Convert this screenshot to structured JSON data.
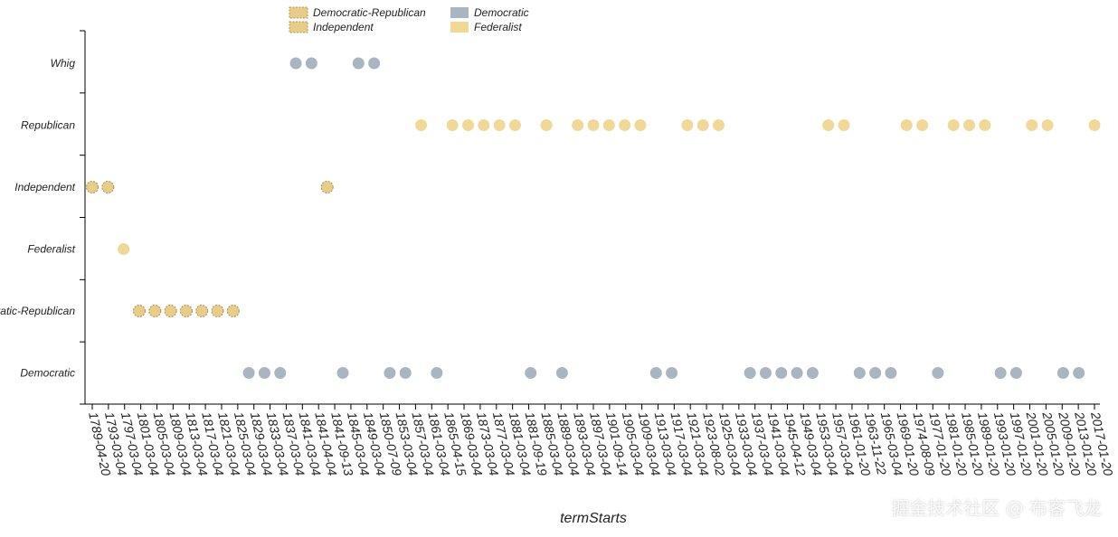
{
  "chart_data": {
    "type": "scatter",
    "xlabel": "termStarts",
    "ylabel": "",
    "legend_position": "top-center",
    "legend": [
      {
        "name": "Democratic-Republican",
        "color": "#e8cd8a",
        "stroke": "#b89a4e",
        "dashed": true
      },
      {
        "name": "Democratic",
        "color": "#aab5c2",
        "stroke": "#aab5c2",
        "dashed": false
      },
      {
        "name": "Independent",
        "color": "#e8cd8a",
        "stroke": "#b89a4e",
        "dashed": true
      },
      {
        "name": "Federalist",
        "color": "#f0d896",
        "stroke": "#f0d896",
        "dashed": false
      }
    ],
    "categories_y": [
      "Whig",
      "Republican",
      "Independent",
      "Federalist",
      "Democratic-Republican",
      "Democratic"
    ],
    "categories_x": [
      "1789-04-20",
      "1793-03-04",
      "1797-03-04",
      "1801-03-04",
      "1805-03-04",
      "1809-03-04",
      "1813-03-04",
      "1817-03-04",
      "1821-03-04",
      "1825-03-04",
      "1829-03-04",
      "1833-03-04",
      "1837-03-04",
      "1841-03-04",
      "1841-04-04",
      "1841-09-13",
      "1845-03-04",
      "1849-03-04",
      "1850-07-09",
      "1853-03-04",
      "1857-03-04",
      "1861-03-04",
      "1865-04-15",
      "1869-03-04",
      "1873-03-04",
      "1877-03-04",
      "1881-03-04",
      "1881-09-19",
      "1885-03-04",
      "1889-03-04",
      "1893-03-04",
      "1897-03-04",
      "1901-09-14",
      "1901-03-04",
      "1905-03-04",
      "1909-03-04",
      "1913-03-04",
      "1917-03-04",
      "1921-03-04",
      "1923-08-02",
      "1925-03-04",
      "1929-03-04",
      "1933-03-04",
      "1937-03-04",
      "1941-03-04",
      "1945-04-12",
      "1949-03-04",
      "1953-03-04",
      "1957-03-04",
      "1961-01-20",
      "1963-11-22",
      "1965-03-04",
      "1969-01-20",
      "1974-08-09",
      "1977-01-20",
      "1981-01-20",
      "1985-01-20",
      "1989-01-20",
      "1993-01-20",
      "1997-01-20",
      "2001-01-20",
      "2005-01-20",
      "2009-01-20",
      "2013-01-20",
      "2017-01-20"
    ],
    "tick_labels_x": [
      "1789-04-20",
      "1793-03-04",
      "1797-03-04",
      "1801-03-04",
      "1805-03-04",
      "1809-03-04",
      "1813-03-04",
      "1817-03-04",
      "1821-03-04",
      "1825-03-04",
      "1829-03-04",
      "1833-03-04",
      "1837-03-04",
      "1841-03-04",
      "1841-04-04",
      "1841-09-13",
      "1845-03-04",
      "1849-03-04",
      "1850-07-09",
      "1853-03-04",
      "1857-03-04",
      "1861-03-04",
      "1865-04-15",
      "1869-03-04",
      "1873-03-04",
      "1877-03-04",
      "1881-03-04",
      "1881-09-19",
      "1885-03-04",
      "1889-03-04",
      "1893-03-04",
      "1897-03-04",
      "1901-09-14",
      "1905-03-04",
      "1909-03-04",
      "1913-03-04",
      "1917-03-04",
      "1921-03-04",
      "1923-08-02",
      "1925-03-04",
      "1933-03-04",
      "1937-03-04",
      "1941-03-04",
      "1945-04-12",
      "1949-03-04",
      "1953-03-04",
      "1957-03-04",
      "1961-01-20",
      "1963-11-22",
      "1965-03-04",
      "1969-01-20",
      "1974-08-09",
      "1977-01-20",
      "1981-01-20",
      "1985-01-20",
      "1989-01-20",
      "1993-01-20",
      "1997-01-20",
      "2001-01-20",
      "2005-01-20",
      "2009-01-20",
      "2013-01-20",
      "2017-01-20"
    ],
    "points": [
      {
        "x": "1789-04-20",
        "y": "Independent"
      },
      {
        "x": "1793-03-04",
        "y": "Independent"
      },
      {
        "x": "1797-03-04",
        "y": "Federalist"
      },
      {
        "x": "1801-03-04",
        "y": "Democratic-Republican"
      },
      {
        "x": "1805-03-04",
        "y": "Democratic-Republican"
      },
      {
        "x": "1809-03-04",
        "y": "Democratic-Republican"
      },
      {
        "x": "1813-03-04",
        "y": "Democratic-Republican"
      },
      {
        "x": "1817-03-04",
        "y": "Democratic-Republican"
      },
      {
        "x": "1821-03-04",
        "y": "Democratic-Republican"
      },
      {
        "x": "1825-03-04",
        "y": "Democratic-Republican"
      },
      {
        "x": "1829-03-04",
        "y": "Democratic"
      },
      {
        "x": "1833-03-04",
        "y": "Democratic"
      },
      {
        "x": "1837-03-04",
        "y": "Democratic"
      },
      {
        "x": "1841-03-04",
        "y": "Whig"
      },
      {
        "x": "1841-04-04",
        "y": "Whig"
      },
      {
        "x": "1841-09-13",
        "y": "Independent"
      },
      {
        "x": "1845-03-04",
        "y": "Democratic"
      },
      {
        "x": "1849-03-04",
        "y": "Whig"
      },
      {
        "x": "1850-07-09",
        "y": "Whig"
      },
      {
        "x": "1853-03-04",
        "y": "Democratic"
      },
      {
        "x": "1857-03-04",
        "y": "Democratic"
      },
      {
        "x": "1861-03-04",
        "y": "Republican"
      },
      {
        "x": "1865-04-15",
        "y": "Democratic"
      },
      {
        "x": "1869-03-04",
        "y": "Republican"
      },
      {
        "x": "1873-03-04",
        "y": "Republican"
      },
      {
        "x": "1877-03-04",
        "y": "Republican"
      },
      {
        "x": "1881-03-04",
        "y": "Republican"
      },
      {
        "x": "1881-09-19",
        "y": "Republican"
      },
      {
        "x": "1885-03-04",
        "y": "Democratic"
      },
      {
        "x": "1889-03-04",
        "y": "Republican"
      },
      {
        "x": "1893-03-04",
        "y": "Democratic"
      },
      {
        "x": "1897-03-04",
        "y": "Republican"
      },
      {
        "x": "1901-09-14",
        "y": "Republican"
      },
      {
        "x": "1901-03-04",
        "y": "Republican"
      },
      {
        "x": "1905-03-04",
        "y": "Republican"
      },
      {
        "x": "1909-03-04",
        "y": "Republican"
      },
      {
        "x": "1913-03-04",
        "y": "Democratic"
      },
      {
        "x": "1917-03-04",
        "y": "Democratic"
      },
      {
        "x": "1921-03-04",
        "y": "Republican"
      },
      {
        "x": "1923-08-02",
        "y": "Republican"
      },
      {
        "x": "1925-03-04",
        "y": "Republican"
      },
      {
        "x": "1933-03-04",
        "y": "Democratic"
      },
      {
        "x": "1937-03-04",
        "y": "Democratic"
      },
      {
        "x": "1941-03-04",
        "y": "Democratic"
      },
      {
        "x": "1945-04-12",
        "y": "Democratic"
      },
      {
        "x": "1949-03-04",
        "y": "Democratic"
      },
      {
        "x": "1953-03-04",
        "y": "Republican"
      },
      {
        "x": "1957-03-04",
        "y": "Republican"
      },
      {
        "x": "1961-01-20",
        "y": "Democratic"
      },
      {
        "x": "1963-11-22",
        "y": "Democratic"
      },
      {
        "x": "1965-03-04",
        "y": "Democratic"
      },
      {
        "x": "1969-01-20",
        "y": "Republican"
      },
      {
        "x": "1974-08-09",
        "y": "Republican"
      },
      {
        "x": "1977-01-20",
        "y": "Democratic"
      },
      {
        "x": "1981-01-20",
        "y": "Republican"
      },
      {
        "x": "1985-01-20",
        "y": "Republican"
      },
      {
        "x": "1989-01-20",
        "y": "Republican"
      },
      {
        "x": "1993-01-20",
        "y": "Democratic"
      },
      {
        "x": "1997-01-20",
        "y": "Democratic"
      },
      {
        "x": "2001-01-20",
        "y": "Republican"
      },
      {
        "x": "2005-01-20",
        "y": "Republican"
      },
      {
        "x": "2009-01-20",
        "y": "Democratic"
      },
      {
        "x": "2013-01-20",
        "y": "Democratic"
      },
      {
        "x": "2017-01-20",
        "y": "Republican"
      }
    ]
  },
  "watermark": "掘金技术社区 @ 布客飞龙"
}
